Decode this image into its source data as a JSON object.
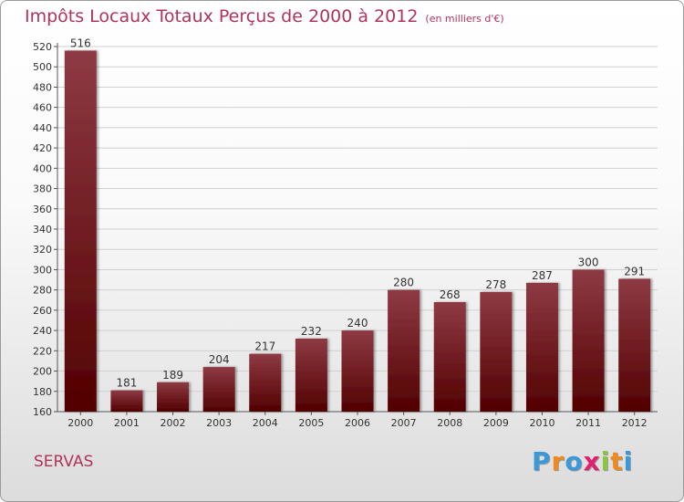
{
  "title": "Impôts Locaux Totaux Perçus de 2000 à 2012",
  "unit": "(en milliers d'€)",
  "place": "SERVAS",
  "logo": {
    "text": "Proxiti",
    "letters": [
      {
        "ch": "P",
        "color": "#3a9ad9"
      },
      {
        "ch": "r",
        "color": "#f08a1c"
      },
      {
        "ch": "o",
        "color": "#3a9ad9"
      },
      {
        "ch": "x",
        "color": "#e02070"
      },
      {
        "ch": "i",
        "color": "#8cc63f"
      },
      {
        "ch": "t",
        "color": "#f08a1c"
      },
      {
        "ch": "i",
        "color": "#3a9ad9"
      }
    ]
  },
  "colors": {
    "bar_top": "#8e3a44",
    "bar_bottom": "#520000",
    "title": "#b0345a"
  },
  "chart_data": {
    "type": "bar",
    "categories": [
      "2000",
      "2001",
      "2002",
      "2003",
      "2004",
      "2005",
      "2006",
      "2007",
      "2008",
      "2009",
      "2010",
      "2011",
      "2012"
    ],
    "values": [
      516,
      181,
      189,
      204,
      217,
      232,
      240,
      280,
      268,
      278,
      287,
      300,
      291
    ],
    "ylim": [
      160,
      520
    ],
    "yticks": [
      160,
      180,
      200,
      220,
      240,
      260,
      280,
      300,
      320,
      340,
      360,
      380,
      400,
      420,
      440,
      460,
      480,
      500,
      520
    ],
    "grid": true
  }
}
